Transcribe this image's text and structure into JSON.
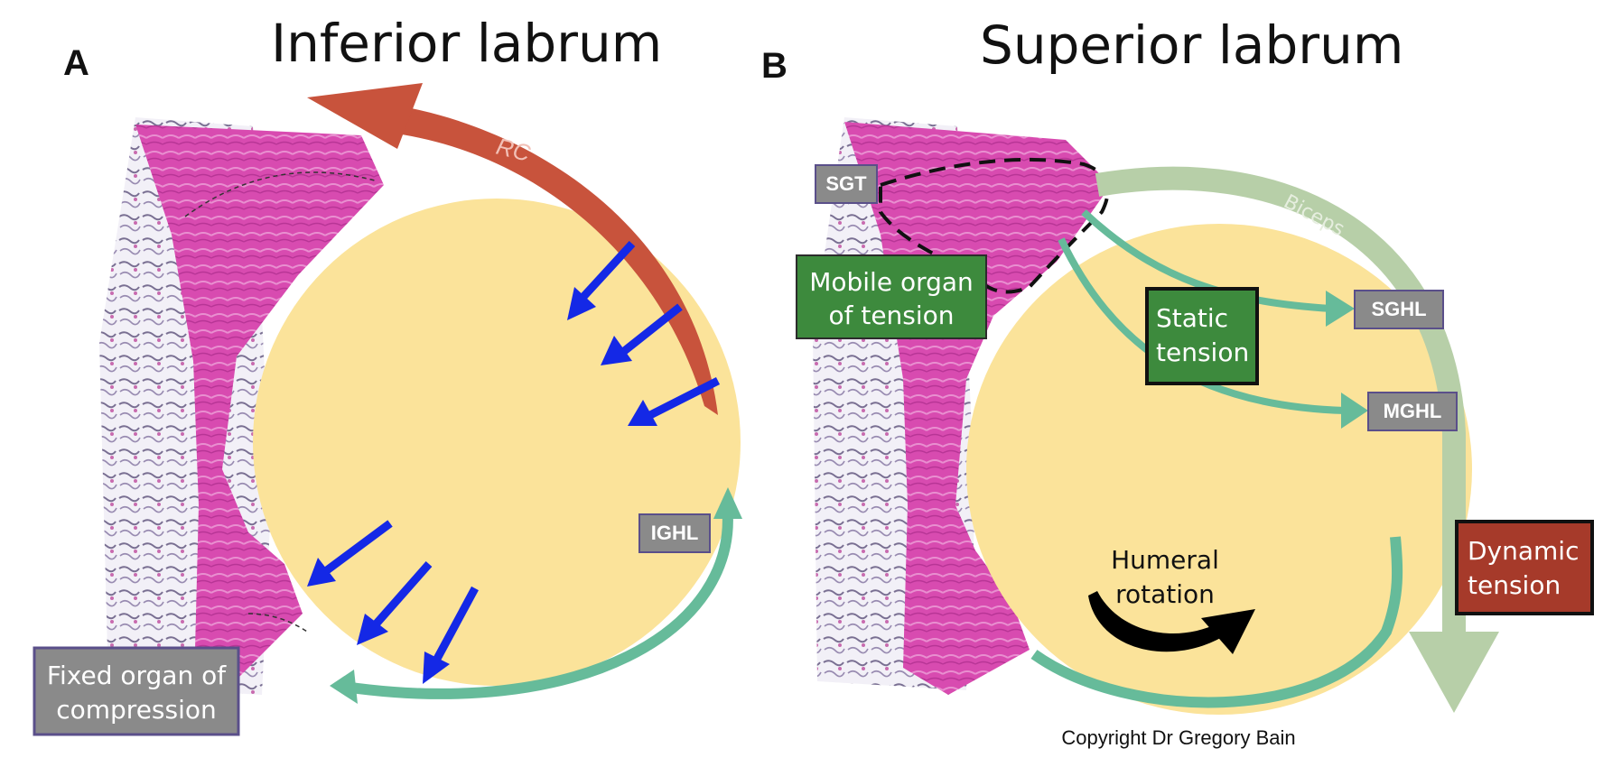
{
  "panels": {
    "a": {
      "letter": "A",
      "title": "Inferior labrum",
      "arrow_label": "RC",
      "ighl_label": "IGHL",
      "fixed_organ_line1": "Fixed organ of",
      "fixed_organ_line2": "compression"
    },
    "b": {
      "letter": "B",
      "title": "Superior labrum",
      "sgt_label": "SGT",
      "biceps_label": "Biceps",
      "mobile_organ_line1": "Mobile organ",
      "mobile_organ_line2": "of tension",
      "static_tension_line1": "Static",
      "static_tension_line2": "tension",
      "sghl_label": "SGHL",
      "mghl_label": "MGHL",
      "dynamic_tension_line1": "Dynamic",
      "dynamic_tension_line2": "tension",
      "humeral_rotation_line1": "Humeral",
      "humeral_rotation_line2": "rotation"
    }
  },
  "copyright": "Copyright Dr Gregory Bain",
  "colors": {
    "humeral_head": "#fbe39a",
    "tissue_pink": "#d94fb0",
    "rc_arrow": "#c8533c",
    "compression_arrow": "#1428e6",
    "green_arrow": "#66bb9a",
    "biceps_arrow": "#b7cfa8",
    "grey_label": "#8a8a8a",
    "green_box": "#3d8a3d",
    "red_box": "#a63a2a"
  }
}
